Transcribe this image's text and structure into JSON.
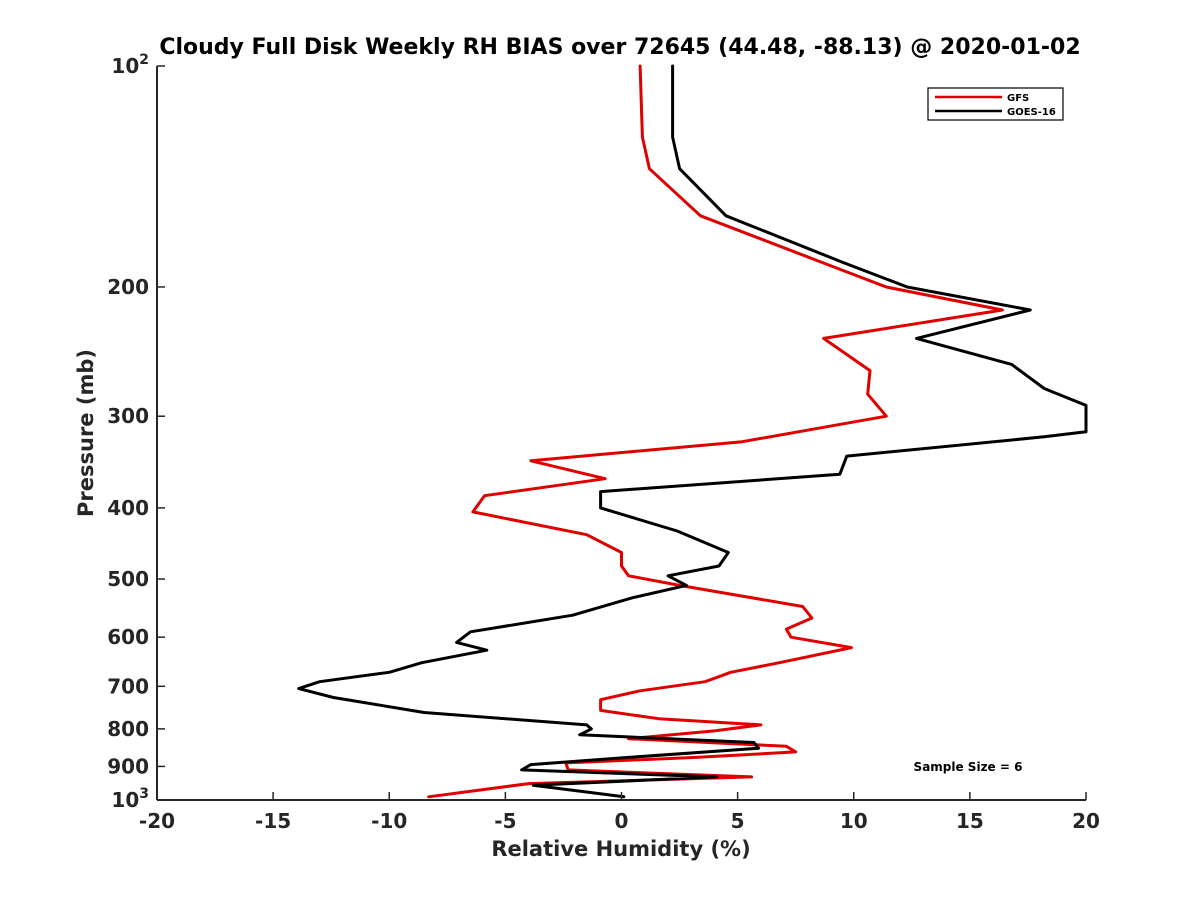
{
  "chart_data": {
    "type": "line",
    "title": "Cloudy Full Disk Weekly RH BIAS over 72645 (44.48, -88.13) @ 2020-01-02",
    "xlabel": "Relative Humidity (%)",
    "ylabel": "Pressure (mb)",
    "xlim": [
      -20,
      20
    ],
    "ylim": [
      100,
      1000
    ],
    "y_scale": "log",
    "y_reversed": true,
    "grid": false,
    "legend_position": "top-right",
    "x_ticks": [
      -20,
      -15,
      -10,
      -5,
      0,
      5,
      10,
      15,
      20
    ],
    "x_tick_labels": [
      "-20",
      "-15",
      "-10",
      "-5",
      "0",
      "5",
      "10",
      "15",
      "20"
    ],
    "y_ticks": [
      {
        "value": 100,
        "base": "10",
        "exp": "2"
      },
      {
        "value": 200,
        "label": "200"
      },
      {
        "value": 300,
        "label": "300"
      },
      {
        "value": 400,
        "label": "400"
      },
      {
        "value": 500,
        "label": "500"
      },
      {
        "value": 600,
        "label": "600"
      },
      {
        "value": 700,
        "label": "700"
      },
      {
        "value": 800,
        "label": "800"
      },
      {
        "value": 900,
        "label": "900"
      },
      {
        "value": 1000,
        "base": "10",
        "exp": "3"
      }
    ],
    "annotation": "Sample Size = 6",
    "series": [
      {
        "name": "GFS",
        "color": "#e00000",
        "points": [
          [
            0.8,
            100
          ],
          [
            0.9,
            125
          ],
          [
            1.2,
            138
          ],
          [
            3.4,
            160
          ],
          [
            8.6,
            185
          ],
          [
            11.4,
            200
          ],
          [
            16.4,
            215
          ],
          [
            8.7,
            235
          ],
          [
            10.7,
            260
          ],
          [
            10.6,
            280
          ],
          [
            11.4,
            300
          ],
          [
            5.2,
            325
          ],
          [
            -3.9,
            345
          ],
          [
            -0.7,
            365
          ],
          [
            -5.9,
            385
          ],
          [
            -6.4,
            405
          ],
          [
            -1.5,
            435
          ],
          [
            0,
            460
          ],
          [
            0,
            480
          ],
          [
            0.3,
            495
          ],
          [
            2.5,
            510
          ],
          [
            7.8,
            545
          ],
          [
            8.2,
            565
          ],
          [
            7.1,
            585
          ],
          [
            7.3,
            600
          ],
          [
            9.9,
            620
          ],
          [
            6.8,
            650
          ],
          [
            4.7,
            670
          ],
          [
            3.6,
            690
          ],
          [
            0.8,
            710
          ],
          [
            -0.9,
            730
          ],
          [
            -0.9,
            755
          ],
          [
            1.6,
            775
          ],
          [
            6.0,
            790
          ],
          [
            4.0,
            805
          ],
          [
            0.3,
            825
          ],
          [
            7.1,
            845
          ],
          [
            7.5,
            860
          ],
          [
            3.2,
            875
          ],
          [
            -2.4,
            890
          ],
          [
            -2.3,
            910
          ],
          [
            5.6,
            930
          ],
          [
            -4.0,
            950
          ],
          [
            -8.3,
            990
          ]
        ]
      },
      {
        "name": "GOES-16",
        "color": "#000000",
        "points": [
          [
            2.2,
            100
          ],
          [
            2.2,
            125
          ],
          [
            2.5,
            138
          ],
          [
            4.5,
            160
          ],
          [
            9.5,
            185
          ],
          [
            12.3,
            200
          ],
          [
            17.6,
            215
          ],
          [
            12.7,
            235
          ],
          [
            16.8,
            255
          ],
          [
            18.2,
            275
          ],
          [
            20,
            290
          ],
          [
            20,
            315
          ],
          [
            18.2,
            320
          ],
          [
            9.7,
            340
          ],
          [
            9.4,
            360
          ],
          [
            -0.9,
            380
          ],
          [
            -0.9,
            400
          ],
          [
            2.4,
            430
          ],
          [
            4.6,
            460
          ],
          [
            4.2,
            480
          ],
          [
            2.0,
            495
          ],
          [
            2.8,
            510
          ],
          [
            0.5,
            530
          ],
          [
            -2.1,
            560
          ],
          [
            -6.5,
            590
          ],
          [
            -7.1,
            610
          ],
          [
            -5.8,
            625
          ],
          [
            -8.6,
            650
          ],
          [
            -10.0,
            670
          ],
          [
            -13.0,
            690
          ],
          [
            -13.9,
            705
          ],
          [
            -12.4,
            725
          ],
          [
            -8.5,
            760
          ],
          [
            -1.5,
            790
          ],
          [
            -1.3,
            800
          ],
          [
            -1.8,
            815
          ],
          [
            5.7,
            835
          ],
          [
            5.9,
            850
          ],
          [
            0.3,
            875
          ],
          [
            -3.9,
            895
          ],
          [
            -4.3,
            910
          ],
          [
            4.1,
            930
          ],
          [
            -3.8,
            955
          ],
          [
            0.1,
            990
          ]
        ]
      }
    ]
  }
}
